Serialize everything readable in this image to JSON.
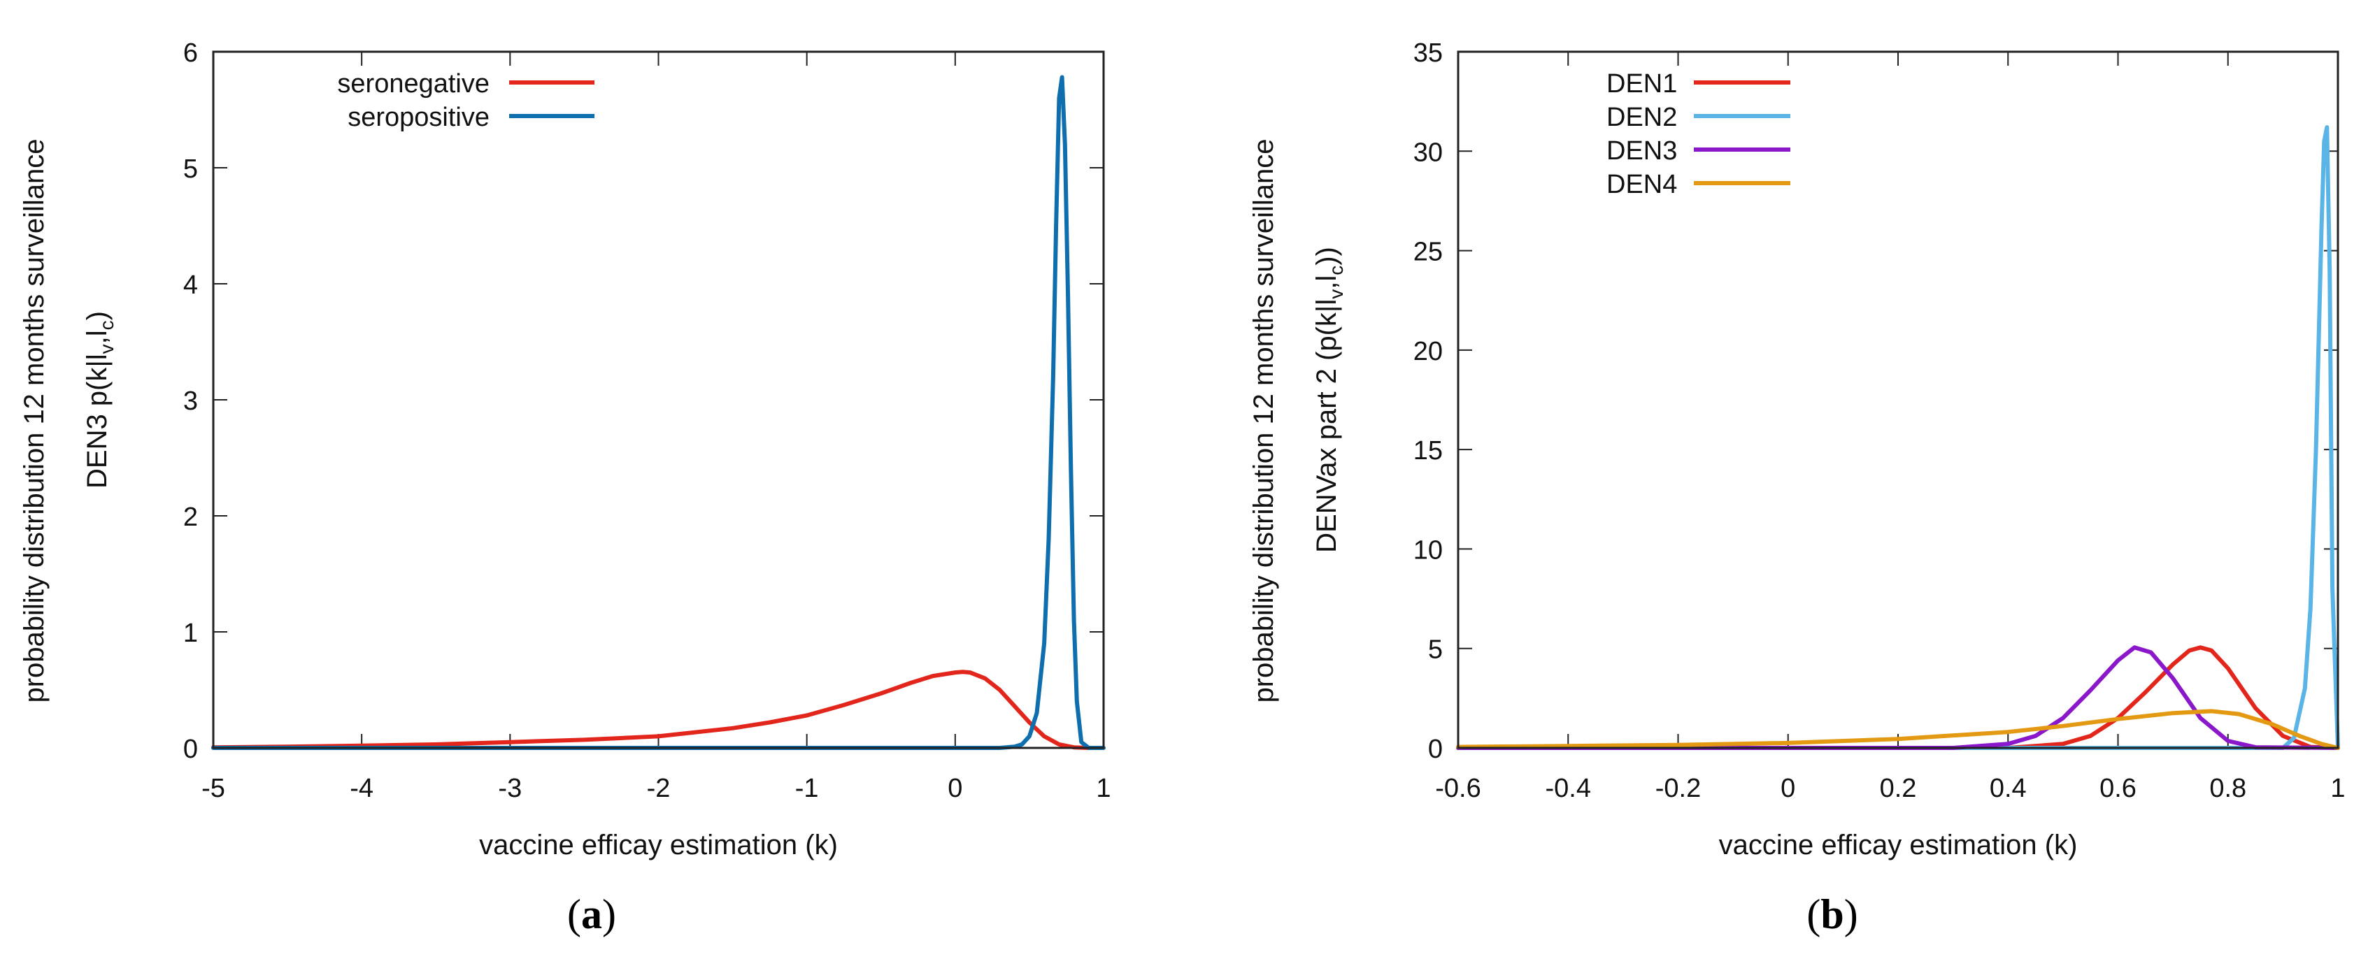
{
  "chart_data": [
    {
      "type": "line",
      "panel_label": "a",
      "title": "",
      "xlabel": "vaccine efficay estimation (k)",
      "ylabel_line1": "probability distribution 12 months surveillance",
      "ylabel_line2_prefix": "DEN3 p(k|l",
      "ylabel_line2_sub1": "v",
      "ylabel_line2_mid": ",l",
      "ylabel_line2_sub2": "c",
      "ylabel_line2_suffix": ")",
      "xlim": [
        -5,
        1
      ],
      "ylim": [
        0,
        6
      ],
      "xticks": [
        -5,
        -4,
        -3,
        -2,
        -1,
        0,
        1
      ],
      "yticks": [
        0,
        1,
        2,
        3,
        4,
        5,
        6
      ],
      "grid": false,
      "legend_position": "top-left",
      "series": [
        {
          "name": "seronegative",
          "color": "#e3261c",
          "x": [
            -5.0,
            -4.5,
            -4.0,
            -3.5,
            -3.0,
            -2.5,
            -2.0,
            -1.5,
            -1.25,
            -1.0,
            -0.75,
            -0.5,
            -0.3,
            -0.15,
            0.0,
            0.05,
            0.1,
            0.2,
            0.3,
            0.4,
            0.5,
            0.6,
            0.7,
            0.8,
            0.9
          ],
          "values": [
            0.005,
            0.01,
            0.02,
            0.03,
            0.05,
            0.07,
            0.1,
            0.17,
            0.22,
            0.28,
            0.37,
            0.47,
            0.56,
            0.62,
            0.65,
            0.655,
            0.65,
            0.6,
            0.5,
            0.36,
            0.22,
            0.1,
            0.03,
            0.005,
            0.0
          ]
        },
        {
          "name": "seropositive",
          "color": "#0f6fae",
          "x": [
            -5.0,
            0.3,
            0.4,
            0.45,
            0.5,
            0.55,
            0.6,
            0.63,
            0.66,
            0.68,
            0.7,
            0.72,
            0.74,
            0.76,
            0.78,
            0.8,
            0.82,
            0.85,
            0.9,
            1.0
          ],
          "values": [
            0.0,
            0.0,
            0.01,
            0.03,
            0.1,
            0.3,
            0.9,
            1.8,
            3.2,
            4.5,
            5.6,
            5.78,
            5.2,
            3.9,
            2.4,
            1.1,
            0.4,
            0.05,
            0.0,
            0.0
          ]
        }
      ]
    },
    {
      "type": "line",
      "panel_label": "b",
      "title": "",
      "xlabel": "vaccine efficay estimation (k)",
      "ylabel_line1": "probability distribution 12 months surveillance",
      "ylabel_line2_prefix": "DENVax part 2 (p(k|l",
      "ylabel_line2_sub1": "v",
      "ylabel_line2_mid": ",l",
      "ylabel_line2_sub2": "c",
      "ylabel_line2_suffix": "))",
      "xlim": [
        -0.6,
        1
      ],
      "ylim": [
        0,
        35
      ],
      "xticks": [
        -0.6,
        -0.4,
        -0.2,
        0,
        0.2,
        0.4,
        0.6,
        0.8,
        1
      ],
      "yticks": [
        0,
        5,
        10,
        15,
        20,
        25,
        30,
        35
      ],
      "grid": false,
      "legend_position": "top-left",
      "series": [
        {
          "name": "DEN1",
          "color": "#e3261c",
          "x": [
            -0.6,
            0.4,
            0.5,
            0.55,
            0.6,
            0.65,
            0.7,
            0.73,
            0.75,
            0.77,
            0.8,
            0.85,
            0.9,
            0.95,
            1.0
          ],
          "values": [
            0.0,
            0.0,
            0.2,
            0.6,
            1.5,
            2.8,
            4.2,
            4.9,
            5.05,
            4.9,
            4.0,
            2.0,
            0.6,
            0.05,
            0.0
          ]
        },
        {
          "name": "DEN2",
          "color": "#5ab4e5",
          "x": [
            -0.6,
            0.9,
            0.92,
            0.94,
            0.95,
            0.96,
            0.97,
            0.975,
            0.98,
            0.985,
            0.99,
            1.0
          ],
          "values": [
            0.0,
            0.0,
            0.5,
            3.0,
            7.0,
            15.0,
            26.0,
            30.5,
            31.2,
            24.0,
            8.0,
            0.0
          ]
        },
        {
          "name": "DEN3",
          "color": "#8a17c9",
          "x": [
            -0.6,
            0.3,
            0.4,
            0.45,
            0.5,
            0.55,
            0.6,
            0.63,
            0.66,
            0.7,
            0.75,
            0.8,
            0.85,
            1.0
          ],
          "values": [
            0.0,
            0.0,
            0.2,
            0.6,
            1.5,
            2.9,
            4.4,
            5.05,
            4.8,
            3.5,
            1.5,
            0.35,
            0.03,
            0.0
          ]
        },
        {
          "name": "DEN4",
          "color": "#e39a12",
          "x": [
            -0.6,
            -0.4,
            -0.2,
            0.0,
            0.2,
            0.4,
            0.5,
            0.6,
            0.7,
            0.77,
            0.82,
            0.88,
            0.93,
            0.97,
            1.0
          ],
          "values": [
            0.05,
            0.1,
            0.15,
            0.25,
            0.45,
            0.8,
            1.1,
            1.45,
            1.75,
            1.85,
            1.7,
            1.2,
            0.6,
            0.2,
            0.0
          ]
        }
      ]
    }
  ]
}
